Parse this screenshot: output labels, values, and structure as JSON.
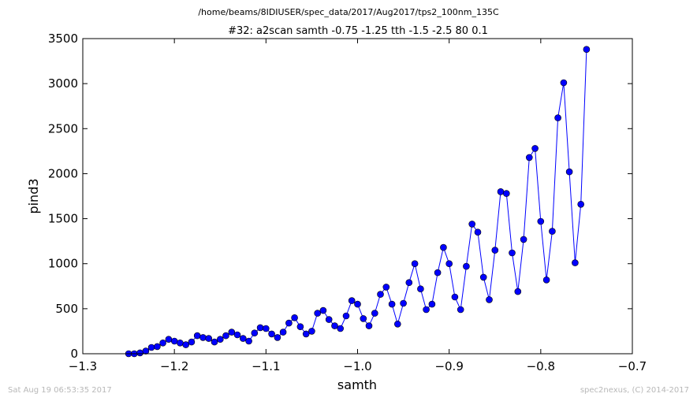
{
  "colors": {
    "series": "#0000ff",
    "marker": "#0000ff",
    "frame": "#000000",
    "footer_text": "#b8b8b8"
  },
  "footer": {
    "left": "Sat Aug 19 06:53:35 2017",
    "right": "spec2nexus, (C) 2014-2017"
  },
  "chart_data": {
    "type": "line",
    "suptitle": "/home/beams/8IDIUSER/spec_data/2017/Aug2017/tps2_100nm_135C",
    "title": "#32: a2scan  samth -0.75 -1.25  tth -1.5 -2.5  80 0.1",
    "xlabel": "samth",
    "ylabel": "pind3",
    "xlim": [
      -1.3,
      -0.7
    ],
    "ylim": [
      0,
      3500
    ],
    "xticks": [
      -1.3,
      -1.2,
      -1.1,
      -1.0,
      -0.9,
      -0.8,
      -0.7
    ],
    "xtick_labels": [
      "−1.3",
      "−1.2",
      "−1.1",
      "−1.0",
      "−0.9",
      "−0.8",
      "−0.7"
    ],
    "yticks": [
      0,
      500,
      1000,
      1500,
      2000,
      2500,
      3000,
      3500
    ],
    "ytick_labels": [
      "0",
      "500",
      "1000",
      "1500",
      "2000",
      "2500",
      "3000",
      "3500"
    ],
    "grid": false,
    "marker": "circle",
    "series": [
      {
        "x": [
          -1.25,
          -1.24375,
          -1.2375,
          -1.23125,
          -1.225,
          -1.21875,
          -1.2125,
          -1.20625,
          -1.2,
          -1.19375,
          -1.1875,
          -1.18125,
          -1.175,
          -1.16875,
          -1.1625,
          -1.15625,
          -1.15,
          -1.14375,
          -1.1375,
          -1.13125,
          -1.125,
          -1.11875,
          -1.1125,
          -1.10625,
          -1.1,
          -1.09375,
          -1.0875,
          -1.08125,
          -1.075,
          -1.06875,
          -1.0625,
          -1.05625,
          -1.05,
          -1.04375,
          -1.0375,
          -1.03125,
          -1.025,
          -1.01875,
          -1.0125,
          -1.00625,
          -1.0,
          -0.99375,
          -0.9875,
          -0.98125,
          -0.975,
          -0.96875,
          -0.9625,
          -0.95625,
          -0.95,
          -0.94375,
          -0.9375,
          -0.93125,
          -0.925,
          -0.91875,
          -0.9125,
          -0.90625,
          -0.9,
          -0.89375,
          -0.8875,
          -0.88125,
          -0.875,
          -0.86875,
          -0.8625,
          -0.85625,
          -0.85,
          -0.84375,
          -0.8375,
          -0.83125,
          -0.825,
          -0.81875,
          -0.8125,
          -0.80625,
          -0.8,
          -0.79375,
          -0.7875,
          -0.78125,
          -0.775,
          -0.76875,
          -0.7625,
          -0.75625,
          -0.75
        ],
        "y": [
          0,
          0,
          10,
          30,
          70,
          80,
          120,
          160,
          140,
          120,
          100,
          130,
          200,
          180,
          170,
          130,
          160,
          200,
          240,
          210,
          170,
          140,
          230,
          290,
          280,
          220,
          180,
          240,
          340,
          400,
          300,
          220,
          250,
          450,
          480,
          380,
          310,
          280,
          420,
          590,
          550,
          390,
          310,
          450,
          660,
          740,
          550,
          330,
          560,
          790,
          1000,
          720,
          490,
          550,
          900,
          1180,
          1000,
          630,
          490,
          970,
          1440,
          1350,
          850,
          600,
          1150,
          1800,
          1780,
          1120,
          690,
          1270,
          2180,
          2280,
          1470,
          820,
          1360,
          2620,
          3010,
          2020,
          1010,
          1660,
          3380
        ]
      }
    ]
  }
}
